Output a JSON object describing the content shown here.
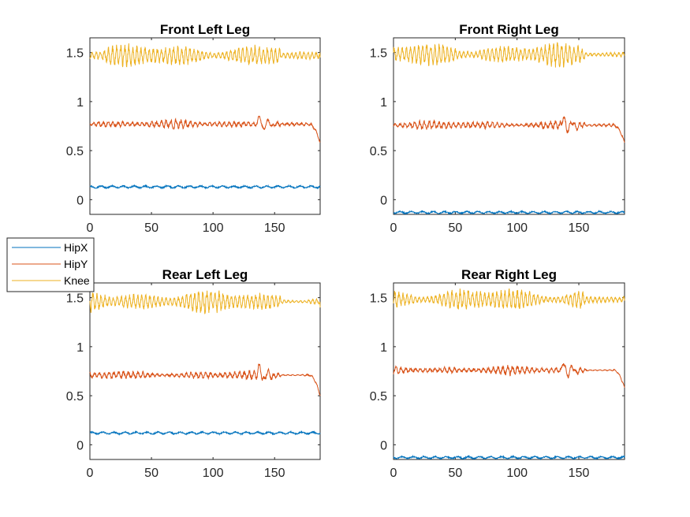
{
  "chart_data": [
    {
      "type": "line",
      "title": "Front Left Leg",
      "xlim": [
        0,
        187
      ],
      "ylim": [
        -0.15,
        1.65
      ],
      "xticks": [
        0,
        50,
        100,
        150
      ],
      "xtick_labels": [
        "0",
        "50",
        "100",
        "150"
      ],
      "yticks": [
        0,
        0.5,
        1,
        1.5
      ],
      "ytick_labels": [
        "0",
        "0.5",
        "1",
        "1.5"
      ],
      "grid": false,
      "x": [
        0,
        187
      ],
      "series": [
        {
          "name": "HipX",
          "color": "#0072BD",
          "mean": 0.13,
          "amplitude": 0.015,
          "end_value": 0.13
        },
        {
          "name": "HipY",
          "color": "#D95319",
          "mean": 0.77,
          "amplitude": 0.05,
          "end_value": 0.58
        },
        {
          "name": "Knee",
          "color": "#EDB120",
          "mean": 1.47,
          "amplitude": 0.12,
          "end_value": 1.45
        }
      ]
    },
    {
      "type": "line",
      "title": "Front Right Leg",
      "xlim": [
        0,
        187
      ],
      "ylim": [
        -0.15,
        1.65
      ],
      "xticks": [
        0,
        50,
        100,
        150
      ],
      "xtick_labels": [
        "0",
        "50",
        "100",
        "150"
      ],
      "yticks": [
        0,
        0.5,
        1,
        1.5
      ],
      "ytick_labels": [
        "0",
        "0.5",
        "1",
        "1.5"
      ],
      "grid": false,
      "x": [
        0,
        187
      ],
      "series": [
        {
          "name": "HipX",
          "color": "#0072BD",
          "mean": -0.13,
          "amplitude": 0.015,
          "end_value": -0.13
        },
        {
          "name": "HipY",
          "color": "#D95319",
          "mean": 0.76,
          "amplitude": 0.05,
          "end_value": 0.58
        },
        {
          "name": "Knee",
          "color": "#EDB120",
          "mean": 1.48,
          "amplitude": 0.12,
          "end_value": 1.47
        }
      ]
    },
    {
      "type": "line",
      "title": "Rear Left Leg",
      "xlim": [
        0,
        187
      ],
      "ylim": [
        -0.15,
        1.65
      ],
      "xticks": [
        0,
        50,
        100,
        150
      ],
      "xtick_labels": [
        "0",
        "50",
        "100",
        "150"
      ],
      "yticks": [
        0,
        0.5,
        1,
        1.5
      ],
      "ytick_labels": [
        "0",
        "0.5",
        "1",
        "1.5"
      ],
      "grid": false,
      "x": [
        0,
        187
      ],
      "series": [
        {
          "name": "HipX",
          "color": "#0072BD",
          "mean": 0.12,
          "amplitude": 0.015,
          "end_value": 0.12
        },
        {
          "name": "HipY",
          "color": "#D95319",
          "mean": 0.71,
          "amplitude": 0.05,
          "end_value": 0.5
        },
        {
          "name": "Knee",
          "color": "#EDB120",
          "mean": 1.46,
          "amplitude": 0.12,
          "end_value": 1.4
        }
      ]
    },
    {
      "type": "line",
      "title": "Rear Right Leg",
      "xlim": [
        0,
        187
      ],
      "ylim": [
        -0.15,
        1.65
      ],
      "xticks": [
        0,
        50,
        100,
        150
      ],
      "xtick_labels": [
        "0",
        "50",
        "100",
        "150"
      ],
      "yticks": [
        0,
        0.5,
        1,
        1.5
      ],
      "ytick_labels": [
        "0",
        "0.5",
        "1",
        "1.5"
      ],
      "grid": false,
      "x": [
        0,
        187
      ],
      "series": [
        {
          "name": "HipX",
          "color": "#0072BD",
          "mean": -0.13,
          "amplitude": 0.015,
          "end_value": -0.13
        },
        {
          "name": "HipY",
          "color": "#D95319",
          "mean": 0.76,
          "amplitude": 0.05,
          "end_value": 0.58
        },
        {
          "name": "Knee",
          "color": "#EDB120",
          "mean": 1.48,
          "amplitude": 0.12,
          "end_value": 1.47
        }
      ]
    }
  ],
  "legend": {
    "placement": "left-middle",
    "entries": [
      {
        "label": "HipX",
        "color": "#0072BD"
      },
      {
        "label": "HipY",
        "color": "#D95319"
      },
      {
        "label": "Knee",
        "color": "#EDB120"
      }
    ]
  }
}
